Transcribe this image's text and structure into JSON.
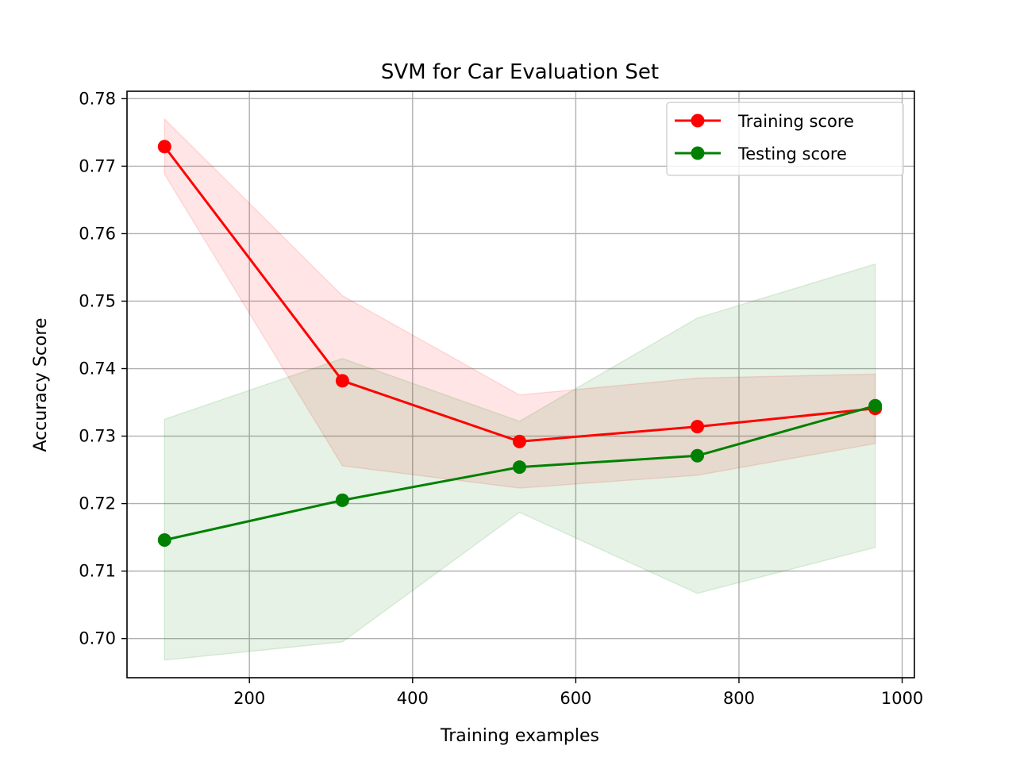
{
  "chart_data": {
    "type": "line",
    "title": "SVM for Car Evaluation Set",
    "xlabel": "Training examples",
    "ylabel": "Accuracy Score",
    "xlim": [
      50,
      1015
    ],
    "ylim": [
      0.6942,
      0.7811
    ],
    "x_ticks": [
      200,
      400,
      600,
      800,
      1000
    ],
    "x_tick_labels": [
      "200",
      "400",
      "600",
      "800",
      "1000"
    ],
    "y_ticks": [
      0.7,
      0.71,
      0.72,
      0.73,
      0.74,
      0.75,
      0.76,
      0.77,
      0.78
    ],
    "y_tick_labels": [
      "0.70",
      "0.71",
      "0.72",
      "0.73",
      "0.74",
      "0.75",
      "0.76",
      "0.77",
      "0.78"
    ],
    "grid": true,
    "legend_position": "upper-right",
    "x": [
      96,
      314,
      531,
      749,
      967
    ],
    "series": [
      {
        "name": "Training score",
        "color": "#ff0000",
        "band_color": "#ff0000",
        "values": [
          0.7729,
          0.7382,
          0.7292,
          0.7314,
          0.7341
        ],
        "band_upper": [
          0.777,
          0.7508,
          0.7361,
          0.7386,
          0.7392
        ],
        "band_lower": [
          0.7688,
          0.7256,
          0.7223,
          0.7242,
          0.7289
        ]
      },
      {
        "name": "Testing score",
        "color": "#008000",
        "band_color": "#008000",
        "values": [
          0.7146,
          0.7205,
          0.7254,
          0.7271,
          0.7345
        ],
        "band_upper": [
          0.7325,
          0.7415,
          0.7322,
          0.7475,
          0.7555
        ],
        "band_lower": [
          0.6968,
          0.6995,
          0.7187,
          0.7067,
          0.7135
        ]
      }
    ]
  }
}
